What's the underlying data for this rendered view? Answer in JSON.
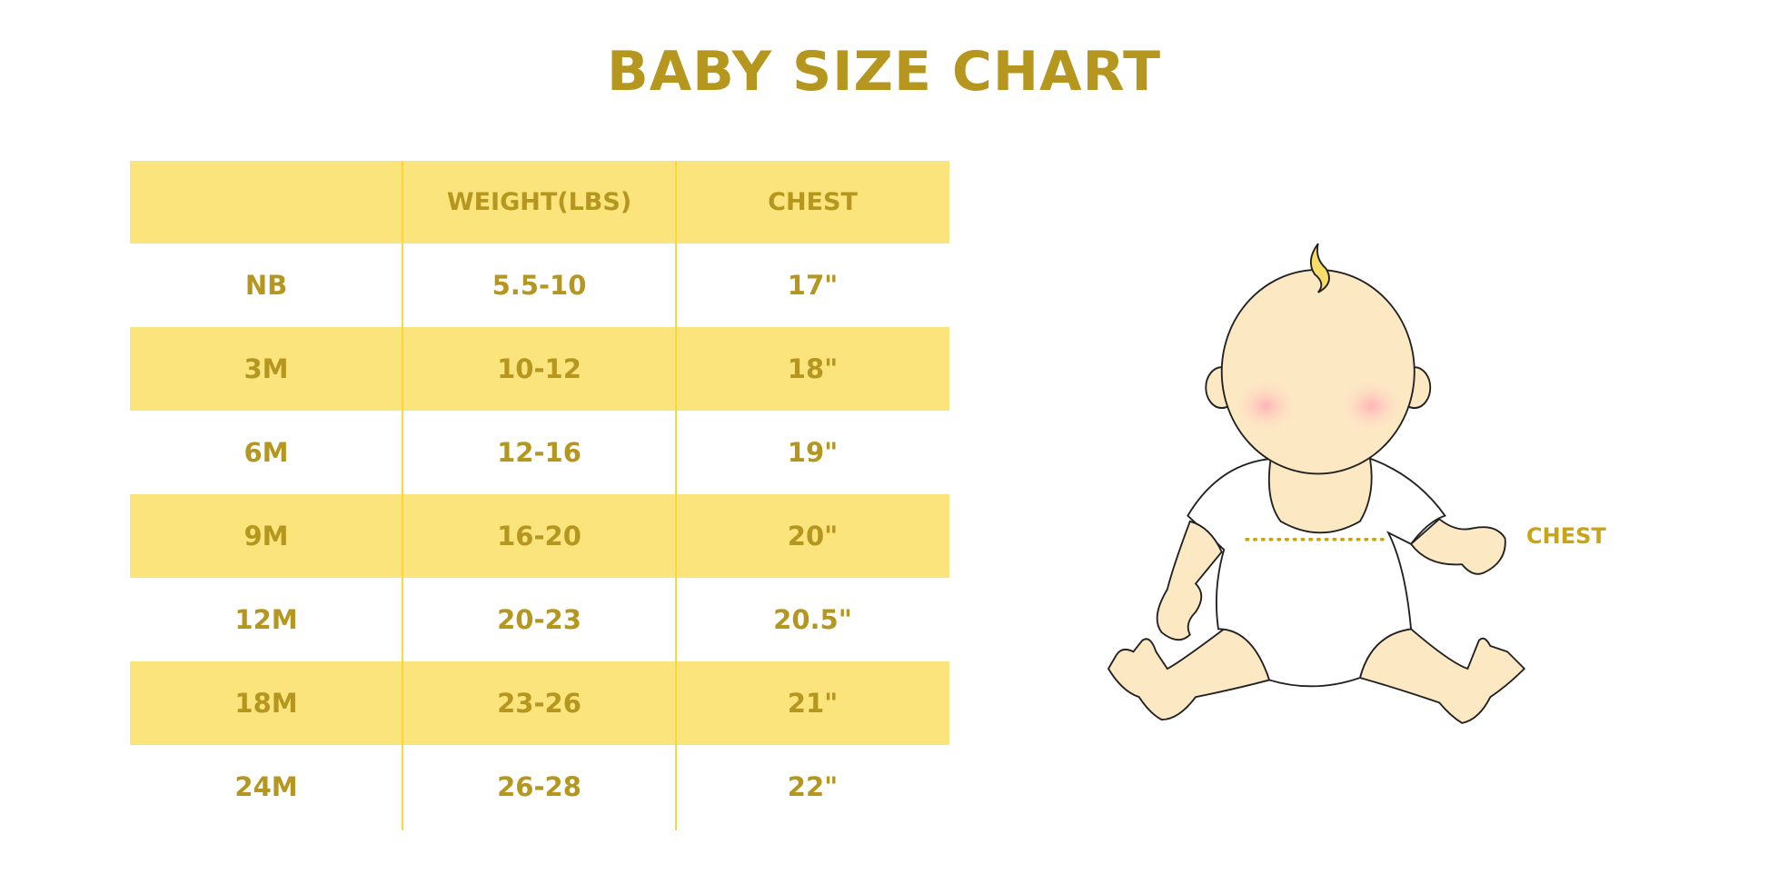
{
  "title": "BABY SIZE CHART",
  "table": {
    "headers": [
      "",
      "WEIGHT(LBS)",
      "CHEST"
    ],
    "rows": [
      [
        "NB",
        "5.5-10",
        "17\""
      ],
      [
        "3M",
        "10-12",
        "18\""
      ],
      [
        "6M",
        "12-16",
        "19\""
      ],
      [
        "9M",
        "16-20",
        "20\""
      ],
      [
        "12M",
        "20-23",
        "20.5\""
      ],
      [
        "18M",
        "23-26",
        "21\""
      ],
      [
        "24M",
        "26-28",
        "22\""
      ]
    ]
  },
  "illustration": {
    "chest_label": "CHEST"
  },
  "colors": {
    "text": "#b5961e",
    "row_fill": "#fbe47c",
    "divider": "#f9d93a",
    "skin": "#fde8c4"
  }
}
